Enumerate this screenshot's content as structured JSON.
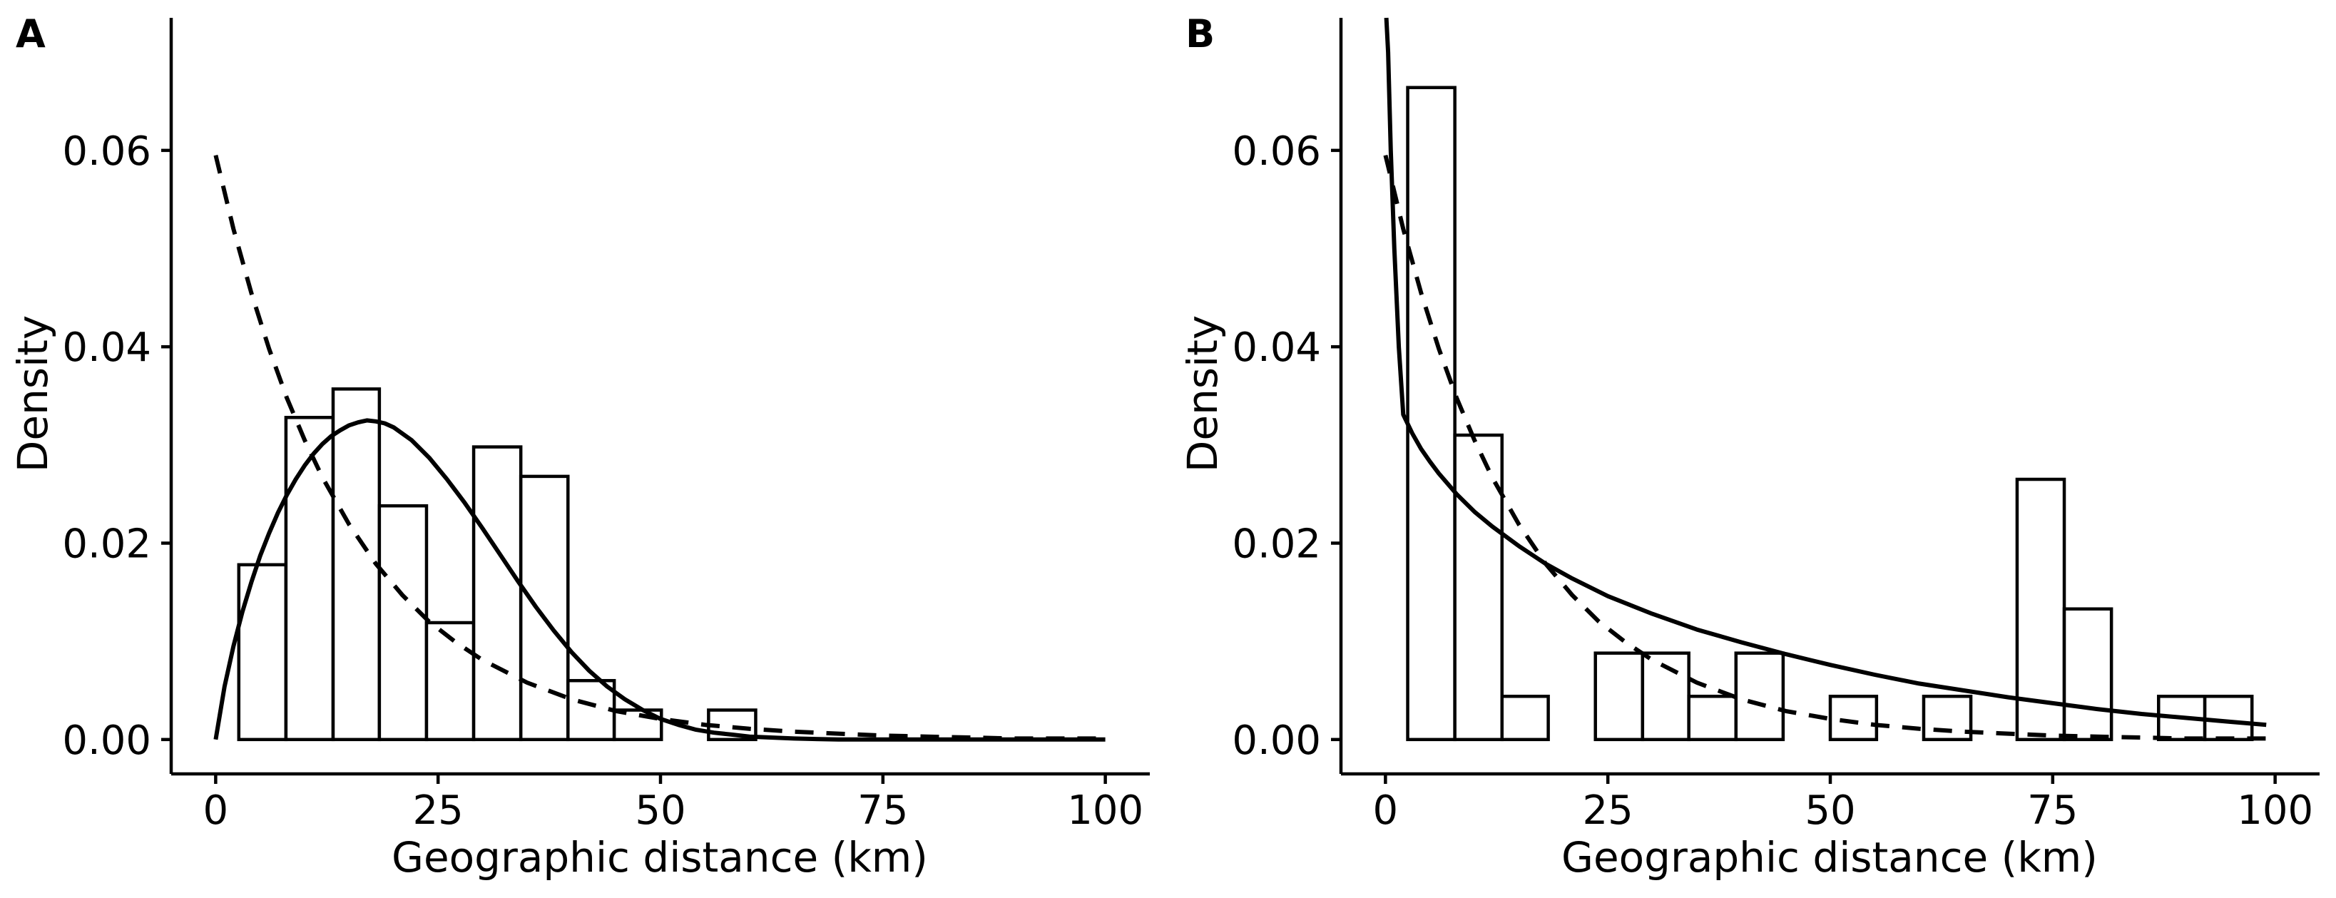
{
  "chart_data": [
    {
      "panel": "A",
      "type": "bar",
      "title": "",
      "xlabel": "Geographic distance (km)",
      "ylabel": "Density",
      "xlim": [
        -5,
        105
      ],
      "ylim": [
        -0.0035,
        0.0735
      ],
      "xticks": [
        0,
        25,
        50,
        75,
        100
      ],
      "xtick_labels": [
        "0",
        "25",
        "50",
        "75",
        "100"
      ],
      "yticks": [
        0.0,
        0.02,
        0.04,
        0.06
      ],
      "ytick_labels": [
        "0.00",
        "0.02",
        "0.04",
        "0.06"
      ],
      "grid": false,
      "legend": "none",
      "bins": [
        {
          "x0": 2.6,
          "x1": 7.9,
          "density": 0.0178
        },
        {
          "x0": 7.9,
          "x1": 13.2,
          "density": 0.0328
        },
        {
          "x0": 13.2,
          "x1": 18.4,
          "density": 0.0357
        },
        {
          "x0": 18.4,
          "x1": 23.7,
          "density": 0.0238
        },
        {
          "x0": 23.7,
          "x1": 29.0,
          "density": 0.0119
        },
        {
          "x0": 29.0,
          "x1": 34.3,
          "density": 0.0298
        },
        {
          "x0": 34.3,
          "x1": 39.6,
          "density": 0.0268
        },
        {
          "x0": 39.6,
          "x1": 44.8,
          "density": 0.006
        },
        {
          "x0": 44.8,
          "x1": 50.1,
          "density": 0.003
        },
        {
          "x0": 50.1,
          "x1": 55.4,
          "density": 0.0
        },
        {
          "x0": 55.4,
          "x1": 60.7,
          "density": 0.003
        }
      ],
      "curves": [
        {
          "style": "solid",
          "x": [
            0,
            1,
            2,
            3,
            4,
            5,
            6,
            7,
            8,
            9,
            10,
            11,
            12,
            13,
            14,
            15,
            16,
            17,
            18,
            19,
            20,
            22,
            24,
            26,
            28,
            30,
            32,
            34,
            36,
            38,
            40,
            42,
            44,
            46,
            48,
            50,
            52,
            54,
            56,
            58,
            60,
            65,
            70,
            75,
            80,
            90,
            100
          ],
          "y": [
            0.0,
            0.0054,
            0.0095,
            0.013,
            0.016,
            0.0187,
            0.021,
            0.0231,
            0.0249,
            0.0265,
            0.0279,
            0.0291,
            0.0301,
            0.0309,
            0.0315,
            0.032,
            0.0323,
            0.0325,
            0.0324,
            0.0322,
            0.0318,
            0.0305,
            0.0287,
            0.0265,
            0.0241,
            0.0215,
            0.0188,
            0.0161,
            0.0135,
            0.0111,
            0.0089,
            0.007,
            0.0054,
            0.0041,
            0.003,
            0.0021,
            0.0015,
            0.001,
            0.0007,
            0.0005,
            0.0003,
            0.0001,
            0.0,
            0.0,
            0.0,
            0.0,
            0.0
          ]
        },
        {
          "style": "dashed",
          "x": [
            0,
            2,
            4,
            6,
            8,
            10,
            12,
            15,
            18,
            21,
            24,
            27,
            30,
            35,
            40,
            45,
            50,
            55,
            60,
            65,
            70,
            75,
            80,
            85,
            90,
            95,
            100
          ],
          "y": [
            0.0595,
            0.052,
            0.0455,
            0.0398,
            0.0348,
            0.0305,
            0.0267,
            0.0219,
            0.0179,
            0.0147,
            0.012,
            0.0099,
            0.0081,
            0.0058,
            0.0041,
            0.0029,
            0.0021,
            0.0015,
            0.0011,
            0.0008,
            0.0006,
            0.0004,
            0.0003,
            0.0002,
            0.0001,
            0.0001,
            0.0001
          ]
        }
      ]
    },
    {
      "panel": "B",
      "type": "bar",
      "title": "",
      "xlabel": "Geographic distance (km)",
      "ylabel": "Density",
      "xlim": [
        -5,
        105
      ],
      "ylim": [
        -0.0035,
        0.0735
      ],
      "xticks": [
        0,
        25,
        50,
        75,
        100
      ],
      "xtick_labels": [
        "0",
        "25",
        "50",
        "75",
        "100"
      ],
      "yticks": [
        0.0,
        0.02,
        0.04,
        0.06
      ],
      "ytick_labels": [
        "0.00",
        "0.02",
        "0.04",
        "0.06"
      ],
      "grid": false,
      "legend": "none",
      "bins": [
        {
          "x0": 2.5,
          "x1": 7.8,
          "density": 0.0664
        },
        {
          "x0": 7.8,
          "x1": 13.1,
          "density": 0.031
        },
        {
          "x0": 13.1,
          "x1": 18.3,
          "density": 0.0044
        },
        {
          "x0": 18.3,
          "x1": 23.6,
          "density": 0.0
        },
        {
          "x0": 23.6,
          "x1": 28.9,
          "density": 0.0088
        },
        {
          "x0": 28.9,
          "x1": 34.1,
          "density": 0.0088
        },
        {
          "x0": 34.1,
          "x1": 39.4,
          "density": 0.0044
        },
        {
          "x0": 39.4,
          "x1": 44.7,
          "density": 0.0088
        },
        {
          "x0": 44.7,
          "x1": 50.0,
          "density": 0.0
        },
        {
          "x0": 50.0,
          "x1": 55.2,
          "density": 0.0044
        },
        {
          "x0": 55.2,
          "x1": 60.5,
          "density": 0.0
        },
        {
          "x0": 60.5,
          "x1": 65.8,
          "density": 0.0044
        },
        {
          "x0": 65.8,
          "x1": 71.0,
          "density": 0.0
        },
        {
          "x0": 71.0,
          "x1": 76.3,
          "density": 0.0265
        },
        {
          "x0": 76.3,
          "x1": 81.6,
          "density": 0.0133
        },
        {
          "x0": 81.6,
          "x1": 86.9,
          "density": 0.0
        },
        {
          "x0": 86.9,
          "x1": 92.1,
          "density": 0.0044
        },
        {
          "x0": 92.1,
          "x1": 97.4,
          "density": 0.0044
        }
      ],
      "curves": [
        {
          "style": "solid",
          "x": [
            0.1,
            0.3,
            0.6,
            1.0,
            1.5,
            2.0,
            3,
            4,
            5,
            6,
            8,
            10,
            12,
            15,
            18,
            21,
            25,
            30,
            35,
            40,
            45,
            50,
            55,
            60,
            65,
            70,
            75,
            80,
            85,
            90,
            95,
            99
          ],
          "y": [
            0.0735,
            0.07,
            0.06,
            0.05,
            0.04,
            0.0331,
            0.0312,
            0.0296,
            0.0283,
            0.0271,
            0.025,
            0.0232,
            0.0217,
            0.0197,
            0.0179,
            0.0164,
            0.0146,
            0.0128,
            0.0112,
            0.0099,
            0.0087,
            0.0076,
            0.0066,
            0.0057,
            0.005,
            0.0043,
            0.0037,
            0.0031,
            0.0026,
            0.0022,
            0.0018,
            0.0015
          ]
        },
        {
          "style": "dashed",
          "x": [
            0,
            2,
            4,
            6,
            8,
            10,
            12,
            15,
            18,
            21,
            24,
            27,
            30,
            35,
            40,
            45,
            50,
            55,
            60,
            65,
            70,
            75,
            80,
            85,
            90,
            95,
            99
          ],
          "y": [
            0.0595,
            0.052,
            0.0455,
            0.0398,
            0.0348,
            0.0305,
            0.0267,
            0.0219,
            0.0179,
            0.0147,
            0.012,
            0.0099,
            0.0081,
            0.0058,
            0.0041,
            0.0029,
            0.0021,
            0.0015,
            0.0011,
            0.0008,
            0.0006,
            0.0004,
            0.0003,
            0.0002,
            0.0001,
            0.0001,
            0.0001
          ]
        }
      ]
    }
  ]
}
